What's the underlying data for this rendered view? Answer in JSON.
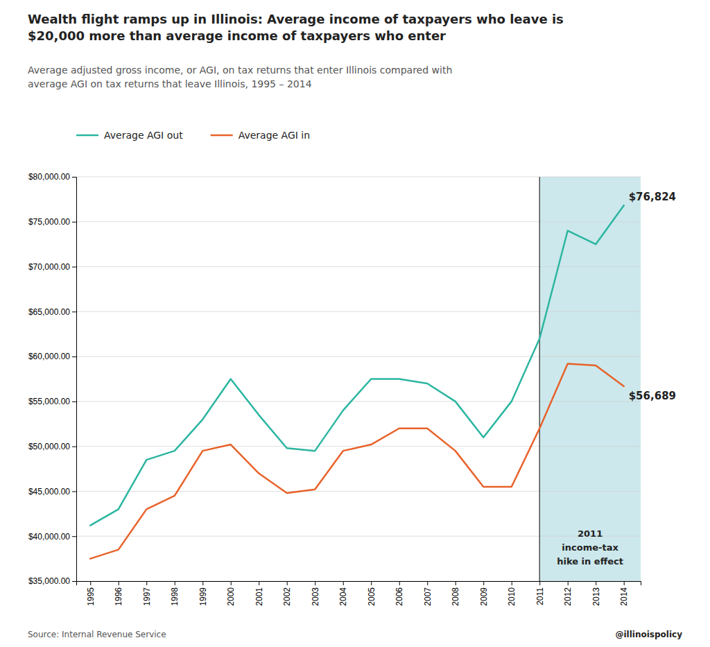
{
  "chart_data": {
    "type": "line",
    "title": "Wealth flight ramps up in Illinois: Average income of taxpayers who leave is\n$20,000 more than average income of taxpayers who enter",
    "subtitle": "Average adjusted gross income, or AGI, on tax returns that enter Illinois compared with\naverage AGI on tax returns that leave Illinois, 1995 – 2014",
    "x": [
      1995,
      1996,
      1997,
      1998,
      1999,
      2000,
      2001,
      2002,
      2003,
      2004,
      2005,
      2006,
      2007,
      2008,
      2009,
      2010,
      2011,
      2012,
      2013,
      2014
    ],
    "series": [
      {
        "name": "Average AGI out",
        "color": "#2bb5a0",
        "values": [
          41200,
          43000,
          48500,
          49500,
          53000,
          57500,
          53500,
          49800,
          49500,
          54000,
          57500,
          57500,
          57000,
          55000,
          51000,
          55000,
          62000,
          74000,
          72500,
          76824
        ],
        "value_labels": [
          null,
          null,
          null,
          null,
          null,
          null,
          null,
          null,
          null,
          null,
          null,
          null,
          null,
          null,
          null,
          null,
          null,
          null,
          null,
          "$76,824"
        ]
      },
      {
        "name": "Average AGI in",
        "color": "#e8622a",
        "values": [
          37500,
          38500,
          43000,
          44500,
          49500,
          50200,
          47000,
          44800,
          45200,
          49500,
          50200,
          52000,
          52000,
          49500,
          45500,
          45500,
          52000,
          59200,
          59000,
          56689
        ],
        "value_labels": [
          null,
          null,
          null,
          null,
          null,
          null,
          null,
          null,
          null,
          null,
          null,
          null,
          null,
          null,
          null,
          null,
          null,
          null,
          null,
          "$56,689"
        ]
      }
    ],
    "xlim": [
      1994.5,
      2014.6
    ],
    "xticks": [
      1995,
      1996,
      1997,
      1998,
      1999,
      2000,
      2001,
      2002,
      2003,
      2004,
      2005,
      2006,
      2007,
      2008,
      2009,
      2010,
      2011,
      2012,
      2013,
      2014
    ],
    "ylim": [
      35000,
      80000
    ],
    "yticks": [
      {
        "value": 35000,
        "label": "$35,000.00"
      },
      {
        "value": 40000,
        "label": "$40,000.00"
      },
      {
        "value": 45000,
        "label": "$45,000.00"
      },
      {
        "value": 50000,
        "label": "$50,000.00"
      },
      {
        "value": 55000,
        "label": "$55,000.00"
      },
      {
        "value": 60000,
        "label": "$60,000.00"
      },
      {
        "value": 65000,
        "label": "$65,000.00"
      },
      {
        "value": 70000,
        "label": "$70,000.00"
      },
      {
        "value": 75000,
        "label": "$75,000.00"
      },
      {
        "value": 80000,
        "label": "$80,000.00"
      }
    ],
    "grid": true,
    "legend": "top",
    "highlight": {
      "start": 2011,
      "color": "#cce8ec"
    },
    "annotation": "2011\nincome-tax\nhike in effect",
    "source": "Source: Internal Revenue Service",
    "credit": "@illinoispolicy"
  }
}
